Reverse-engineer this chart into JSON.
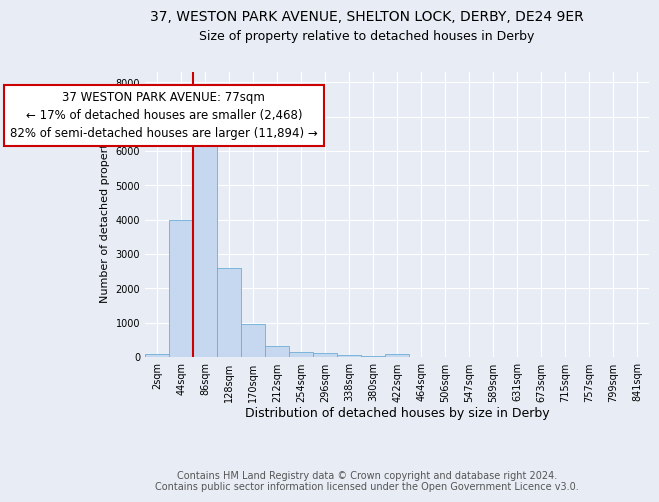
{
  "title1": "37, WESTON PARK AVENUE, SHELTON LOCK, DERBY, DE24 9ER",
  "title2": "Size of property relative to detached houses in Derby",
  "xlabel": "Distribution of detached houses by size in Derby",
  "ylabel": "Number of detached properties",
  "bin_labels": [
    "2sqm",
    "44sqm",
    "86sqm",
    "128sqm",
    "170sqm",
    "212sqm",
    "254sqm",
    "296sqm",
    "338sqm",
    "380sqm",
    "422sqm",
    "464sqm",
    "506sqm",
    "547sqm",
    "589sqm",
    "631sqm",
    "673sqm",
    "715sqm",
    "757sqm",
    "799sqm",
    "841sqm"
  ],
  "bar_heights": [
    75,
    4000,
    6550,
    2600,
    950,
    330,
    145,
    115,
    50,
    35,
    100,
    0,
    0,
    0,
    0,
    0,
    0,
    0,
    0,
    0,
    0
  ],
  "bar_color": "#c5d8ef",
  "bar_edge_color": "#6baed6",
  "property_line_x": 1.5,
  "property_line_color": "#cc0000",
  "annotation_line1": "37 WESTON PARK AVENUE: 77sqm",
  "annotation_line2": "← 17% of detached houses are smaller (2,468)",
  "annotation_line3": "82% of semi-detached houses are larger (11,894) →",
  "annotation_box_color": "#ffffff",
  "annotation_box_edge_color": "#cc0000",
  "ylim": [
    0,
    8300
  ],
  "yticks": [
    0,
    1000,
    2000,
    3000,
    4000,
    5000,
    6000,
    7000,
    8000
  ],
  "background_color": "#e8edf5",
  "plot_background_color": "#e8edf5",
  "footer_text": "Contains HM Land Registry data © Crown copyright and database right 2024.\nContains public sector information licensed under the Open Government Licence v3.0.",
  "title1_fontsize": 10,
  "title2_fontsize": 9,
  "xlabel_fontsize": 9,
  "ylabel_fontsize": 8,
  "tick_fontsize": 7,
  "annotation_fontsize": 8.5,
  "footer_fontsize": 7
}
